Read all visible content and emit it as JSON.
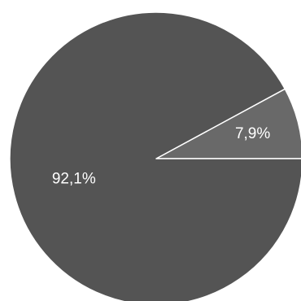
{
  "chart_data": {
    "type": "pie",
    "title": "",
    "slices": [
      {
        "label": "7,9%",
        "value": 7.9,
        "color": "#696969"
      },
      {
        "label": "92,1%",
        "value": 92.1,
        "color": "#545454"
      }
    ],
    "start_angle_deg": 0,
    "direction": "counterclockwise",
    "legend": "none"
  }
}
